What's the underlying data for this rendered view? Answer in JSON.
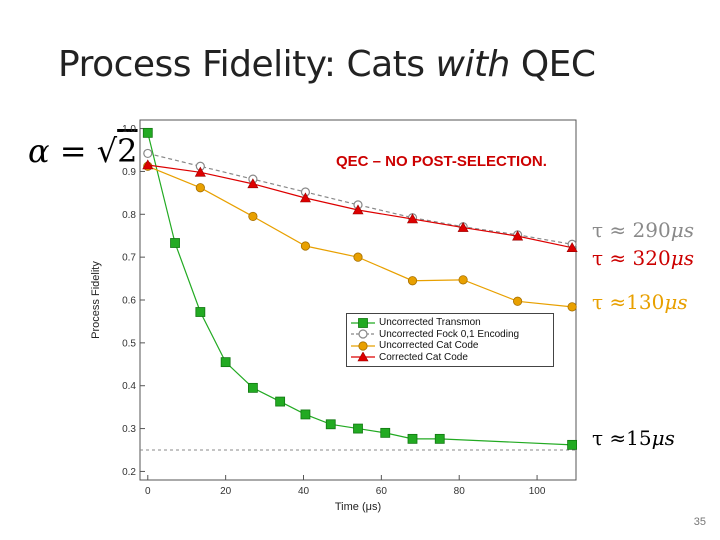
{
  "slide": {
    "title_plain": "Process Fidelity: Cats ",
    "title_em": "with",
    "title_tail": " QEC",
    "alpha_lhs": "α = ",
    "alpha_sqrt": "√",
    "alpha_rad": "2",
    "qec_note": "QEC – NO POST-SELECTION.",
    "page_number": "35"
  },
  "annotations": {
    "fock": {
      "prefix": "τ ≈ 290",
      "unit": "μs"
    },
    "corrected": {
      "prefix": "τ ≈ 320",
      "unit": "μs"
    },
    "uncorrected": {
      "prefix": "τ ≈130",
      "unit": "μs"
    },
    "transmon": {
      "prefix": "τ ≈15",
      "unit": "μs"
    }
  },
  "colors": {
    "transmon": "#22aa22",
    "fock": "#888888",
    "uncorrected": "#e8a000",
    "corrected": "#dd0000"
  },
  "chart_data": {
    "type": "line",
    "xlabel": "Time (μs)",
    "ylabel": "Process Fidelity",
    "xlim": [
      -2,
      110
    ],
    "ylim": [
      0.18,
      1.02
    ],
    "x_ticks": [
      0,
      20,
      40,
      60,
      80,
      100
    ],
    "y_ticks": [
      0.2,
      0.3,
      0.4,
      0.5,
      0.6,
      0.7,
      0.8,
      0.9,
      1.0
    ],
    "y_tick_labels": [
      "0.2",
      "0.3",
      "0.4",
      "0.5",
      "0.6",
      "0.7",
      "0.8",
      "0.9",
      "1.0"
    ],
    "grid": false,
    "legend_position": "lower-center",
    "reference_line": 0.25,
    "series": [
      {
        "name": "Uncorrected Transmon",
        "marker": "square",
        "dashed": false,
        "x": [
          0,
          7,
          13.5,
          20,
          27,
          34,
          40.5,
          47,
          54,
          61,
          68,
          75,
          109
        ],
        "y": [
          0.99,
          0.733,
          0.572,
          0.455,
          0.395,
          0.363,
          0.333,
          0.31,
          0.3,
          0.29,
          0.276,
          0.276,
          0.262
        ]
      },
      {
        "name": "Uncorrected Fock 0,1 Encoding",
        "marker": "circle-open",
        "dashed": true,
        "x": [
          0,
          13.5,
          27,
          40.5,
          54,
          68,
          81,
          95,
          109
        ],
        "y": [
          0.942,
          0.912,
          0.882,
          0.852,
          0.822,
          0.792,
          0.771,
          0.752,
          0.73
        ]
      },
      {
        "name": "Uncorrected Cat Code",
        "marker": "circle",
        "dashed": false,
        "x": [
          0,
          13.5,
          27,
          40.5,
          54,
          68,
          81,
          95,
          109
        ],
        "y": [
          0.912,
          0.862,
          0.795,
          0.726,
          0.7,
          0.645,
          0.647,
          0.597,
          0.584
        ]
      },
      {
        "name": "Corrected Cat Code",
        "marker": "triangle",
        "dashed": false,
        "x": [
          0,
          13.5,
          27,
          40.5,
          54,
          68,
          81,
          95,
          109
        ],
        "y": [
          0.915,
          0.898,
          0.871,
          0.838,
          0.81,
          0.789,
          0.769,
          0.749,
          0.722
        ]
      }
    ]
  }
}
